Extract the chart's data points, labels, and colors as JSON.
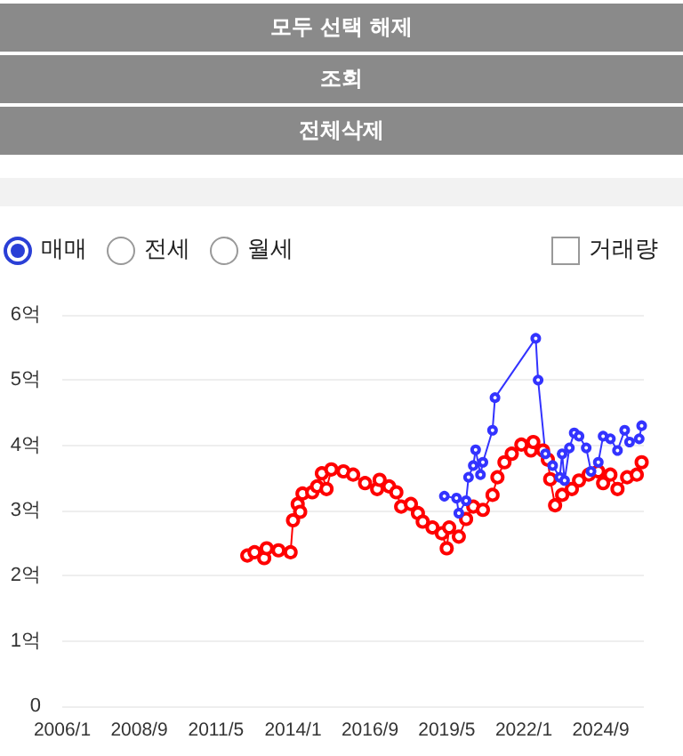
{
  "chart_data": {
    "type": "line",
    "annotations": [
      "모두 선택 해제",
      "조회",
      "전체삭제",
      "매매",
      "전세",
      "월세",
      "거래량"
    ],
    "xlim": [
      "2006-01",
      "2026-03"
    ],
    "xticks": [
      {
        "value": "2006-01",
        "label": "2006/1"
      },
      {
        "value": "2008-09",
        "label": "2008/9"
      },
      {
        "value": "2011-05",
        "label": "2011/5"
      },
      {
        "value": "2014-01",
        "label": "2014/1"
      },
      {
        "value": "2016-09",
        "label": "2016/9"
      },
      {
        "value": "2019-05",
        "label": "2019/5"
      },
      {
        "value": "2022-01",
        "label": "2022/1"
      },
      {
        "value": "2024-09",
        "label": "2024/9"
      }
    ],
    "ylim": [
      0,
      6
    ],
    "yticks": [
      0,
      {
        "value": 1,
        "label": "1억"
      },
      {
        "value": 2,
        "label": "2억"
      },
      {
        "value": 3,
        "label": "3억"
      },
      {
        "value": 4,
        "label": "4억"
      },
      {
        "value": 5,
        "label": "5억"
      },
      {
        "value": 6,
        "label": "6억"
      }
    ],
    "grid": "y",
    "marker": "circle",
    "line_style": "solid",
    "series": [
      {
        "color": "#ff0000",
        "x": [
          "2012-06",
          "2012-09",
          "2013-01",
          "2013-02",
          "2013-07",
          "2013-12",
          "2014-01",
          "2014-03",
          "2014-04",
          "2014-05",
          "2014-09",
          "2014-11",
          "2015-01",
          "2015-03",
          "2015-05",
          "2015-10",
          "2016-02",
          "2016-07",
          "2016-12",
          "2017-01",
          "2017-05",
          "2017-08",
          "2017-10",
          "2018-02",
          "2018-05",
          "2018-07",
          "2018-11",
          "2019-03",
          "2019-05",
          "2019-06",
          "2019-10",
          "2020-01",
          "2020-04",
          "2020-08",
          "2020-12",
          "2021-02",
          "2021-05",
          "2021-08",
          "2021-12",
          "2022-04",
          "2022-05",
          "2022-09",
          "2022-11",
          "2022-12",
          "2023-02",
          "2023-05",
          "2023-09",
          "2023-12",
          "2024-04",
          "2024-08",
          "2024-10",
          "2025-01",
          "2025-04",
          "2025-08",
          "2025-12",
          "2026-02"
        ],
        "values": [
          2.31,
          2.36,
          2.27,
          2.42,
          2.39,
          2.36,
          2.85,
          3.1,
          2.98,
          3.26,
          3.28,
          3.37,
          3.57,
          3.33,
          3.63,
          3.6,
          3.55,
          3.42,
          3.33,
          3.47,
          3.37,
          3.28,
          3.06,
          3.1,
          2.96,
          2.83,
          2.74,
          2.65,
          2.42,
          2.74,
          2.6,
          2.87,
          3.06,
          3.01,
          3.24,
          3.51,
          3.74,
          3.87,
          4.01,
          3.92,
          4.05,
          3.92,
          3.78,
          3.48,
          3.08,
          3.24,
          3.33,
          3.46,
          3.55,
          3.6,
          3.42,
          3.55,
          3.33,
          3.51,
          3.55,
          3.74
        ]
      },
      {
        "color": "#3333ff",
        "x": [
          "2019-04",
          "2019-09",
          "2019-10",
          "2020-01",
          "2020-02",
          "2020-04",
          "2020-05",
          "2020-07",
          "2020-08",
          "2020-12",
          "2021-01",
          "2022-06",
          "2022-07",
          "2022-10",
          "2023-01",
          "2023-04",
          "2023-05",
          "2023-06",
          "2023-08",
          "2023-10",
          "2023-12",
          "2024-03",
          "2024-05",
          "2024-08",
          "2024-10",
          "2025-01",
          "2025-04",
          "2025-07",
          "2025-09",
          "2026-01",
          "2026-02"
        ],
        "values": [
          3.22,
          3.19,
          2.96,
          3.15,
          3.51,
          3.69,
          3.93,
          3.55,
          3.74,
          4.23,
          4.73,
          5.64,
          5.0,
          3.87,
          3.69,
          3.51,
          3.87,
          3.46,
          3.96,
          4.19,
          4.14,
          3.96,
          3.6,
          3.74,
          4.14,
          4.1,
          3.92,
          4.23,
          4.05,
          4.1,
          4.3
        ]
      }
    ]
  }
}
